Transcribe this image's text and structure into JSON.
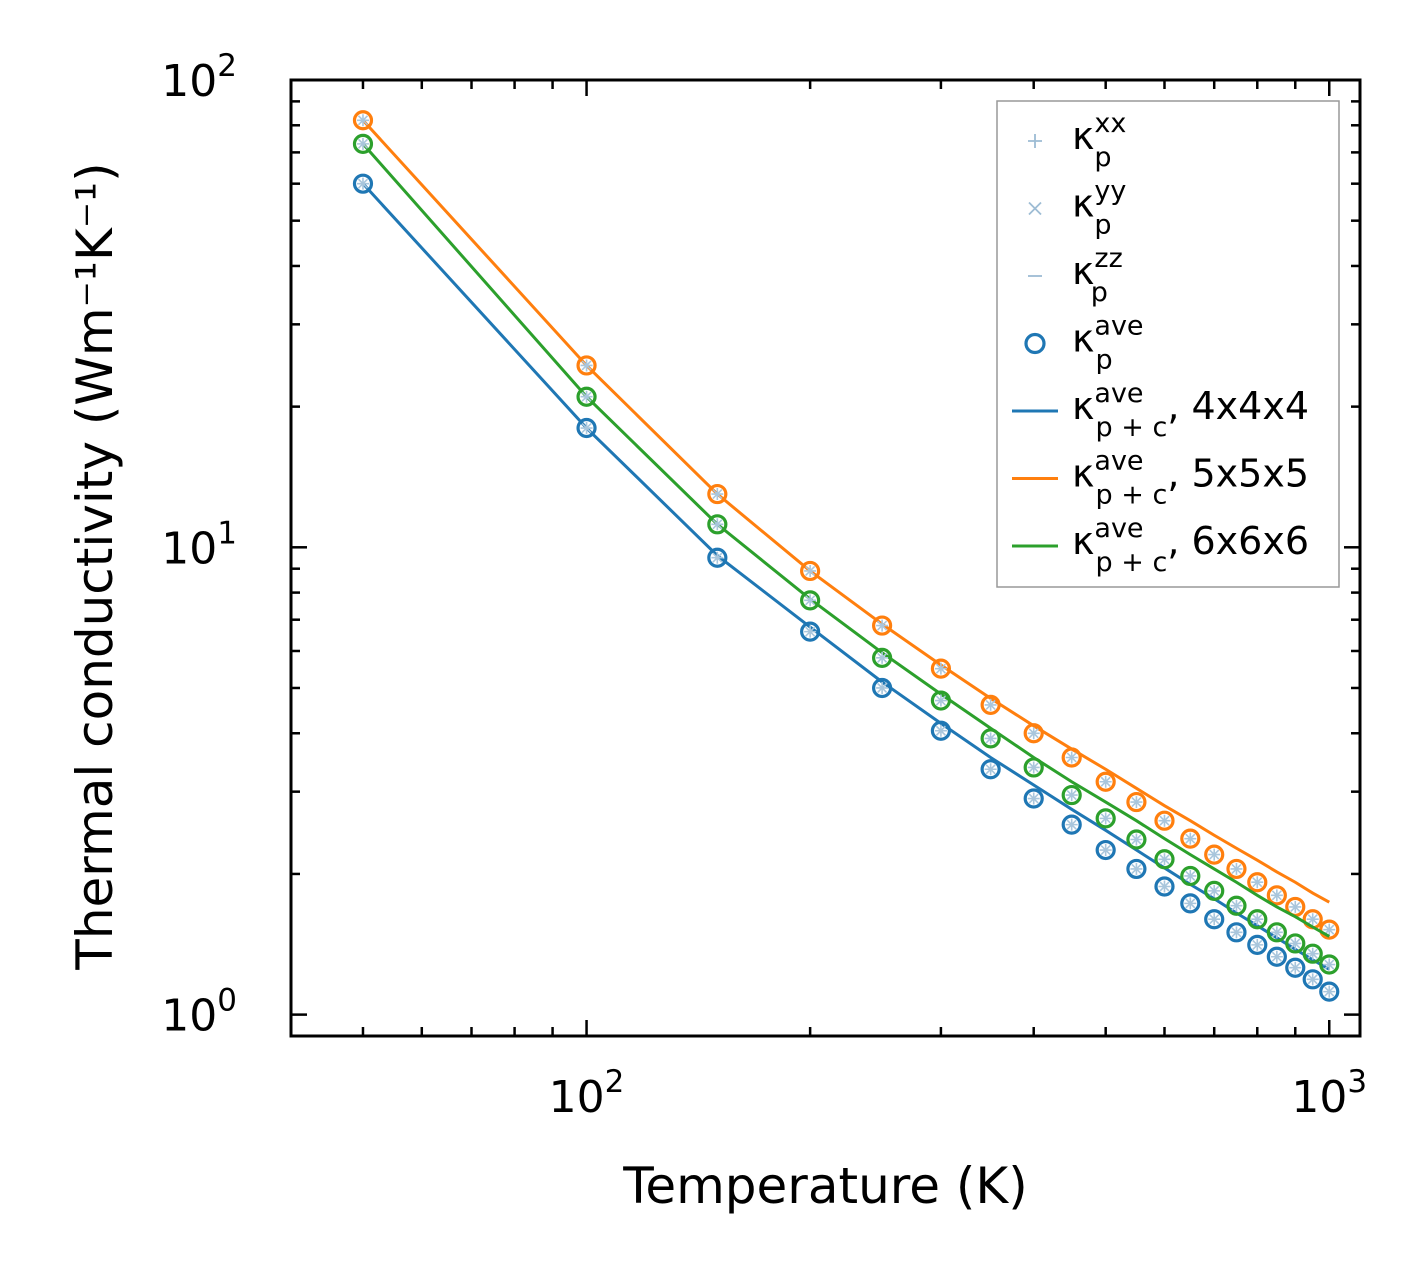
{
  "chart_data": {
    "type": "line",
    "xscale": "log",
    "yscale": "log",
    "xlim": [
      40,
      1100
    ],
    "ylim": [
      0.9,
      100
    ],
    "xlabel": "Temperature (K)",
    "ylabel": "Thermal conductivity (Wm⁻¹K⁻¹)",
    "xticks": [
      {
        "value": 100,
        "base": "10",
        "exp": "2"
      },
      {
        "value": 1000,
        "base": "10",
        "exp": "3"
      }
    ],
    "yticks": [
      {
        "value": 1,
        "base": "10",
        "exp": "0"
      },
      {
        "value": 10,
        "base": "10",
        "exp": "1"
      },
      {
        "value": 100,
        "base": "10",
        "exp": "2"
      }
    ],
    "x": [
      50,
      100,
      150,
      200,
      250,
      300,
      350,
      400,
      450,
      500,
      550,
      600,
      650,
      700,
      750,
      800,
      850,
      900,
      950,
      1000
    ],
    "series": [
      {
        "name": "κ_p^ave, 4x4x4",
        "color": "#1f77b4",
        "points": [
          60,
          18,
          9.5,
          6.6,
          5.0,
          4.05,
          3.35,
          2.9,
          2.55,
          2.25,
          2.05,
          1.88,
          1.73,
          1.6,
          1.5,
          1.41,
          1.33,
          1.26,
          1.19,
          1.12
        ],
        "line": [
          60,
          18,
          9.6,
          6.75,
          5.15,
          4.2,
          3.55,
          3.1,
          2.75,
          2.48,
          2.25,
          2.06,
          1.9,
          1.77,
          1.65,
          1.55,
          1.46,
          1.38,
          1.31,
          1.25
        ]
      },
      {
        "name": "κ_p^ave, 5x5x5",
        "color": "#ff7f0e",
        "points": [
          82,
          24.5,
          13,
          8.9,
          6.8,
          5.5,
          4.6,
          4.0,
          3.55,
          3.15,
          2.85,
          2.6,
          2.38,
          2.2,
          2.05,
          1.92,
          1.8,
          1.7,
          1.6,
          1.52
        ],
        "line": [
          82,
          24.5,
          13,
          8.9,
          6.85,
          5.6,
          4.75,
          4.15,
          3.7,
          3.35,
          3.05,
          2.8,
          2.6,
          2.42,
          2.27,
          2.14,
          2.02,
          1.92,
          1.82,
          1.74
        ]
      },
      {
        "name": "κ_p^ave, 6x6x6",
        "color": "#2ca02c",
        "points": [
          73,
          21,
          11.2,
          7.7,
          5.8,
          4.7,
          3.9,
          3.38,
          2.95,
          2.63,
          2.37,
          2.15,
          1.98,
          1.84,
          1.71,
          1.6,
          1.5,
          1.42,
          1.35,
          1.28
        ],
        "line": [
          73,
          21,
          11.2,
          7.75,
          5.95,
          4.85,
          4.1,
          3.55,
          3.15,
          2.85,
          2.6,
          2.38,
          2.2,
          2.05,
          1.92,
          1.8,
          1.7,
          1.62,
          1.54,
          1.47
        ]
      }
    ],
    "legend": {
      "position": "top-right",
      "entries": [
        {
          "marker": "plus",
          "color": "#9dbcd4",
          "main": "κ",
          "sup": "xx",
          "sub": "p",
          "suffix": ""
        },
        {
          "marker": "x",
          "color": "#9dbcd4",
          "main": "κ",
          "sup": "yy",
          "sub": "p",
          "suffix": ""
        },
        {
          "marker": "dash",
          "color": "#9dbcd4",
          "main": "κ",
          "sup": "zz",
          "sub": "p",
          "suffix": ""
        },
        {
          "marker": "circle",
          "color": "#1f77b4",
          "main": "κ",
          "sup": "ave",
          "sub": "p",
          "suffix": ""
        },
        {
          "marker": "line",
          "color": "#1f77b4",
          "main": "κ",
          "sup": "ave",
          "sub": "p + c",
          "suffix": ", 4x4x4"
        },
        {
          "marker": "line",
          "color": "#ff7f0e",
          "main": "κ",
          "sup": "ave",
          "sub": "p + c",
          "suffix": ", 5x5x5"
        },
        {
          "marker": "line",
          "color": "#2ca02c",
          "main": "κ",
          "sup": "ave",
          "sub": "p + c",
          "suffix": ", 6x6x6"
        }
      ]
    }
  }
}
